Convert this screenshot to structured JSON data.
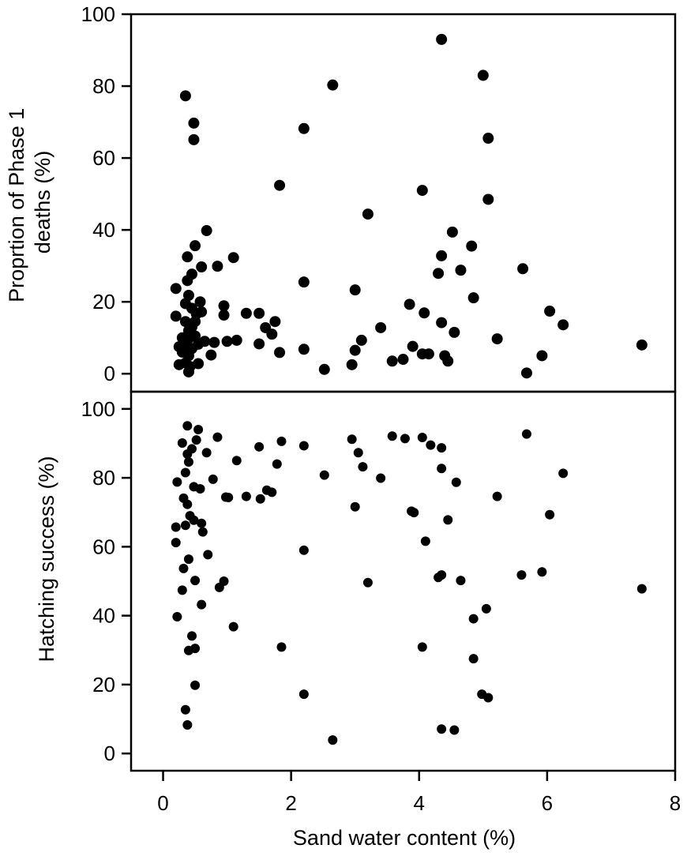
{
  "chart_data": [
    {
      "type": "scatter",
      "title": "",
      "xlabel": "Sand water content (%)",
      "ylabel": [
        "Proprtion of Phase 1",
        "deaths (%)"
      ],
      "xlim": [
        -0.5,
        8
      ],
      "ylim": [
        -5,
        100
      ],
      "xticks": [
        0,
        2,
        4,
        6,
        8
      ],
      "yticks": [
        0,
        20,
        40,
        60,
        80,
        100
      ],
      "grid": false,
      "series": [
        {
          "color": "#000000",
          "points": [
            [
              0.2,
              23.7
            ],
            [
              0.2,
              16.0
            ],
            [
              0.25,
              7.5
            ],
            [
              0.25,
              2.5
            ],
            [
              0.3,
              10.0
            ],
            [
              0.3,
              6.0
            ],
            [
              0.35,
              77.3
            ],
            [
              0.35,
              19.5
            ],
            [
              0.35,
              14.5
            ],
            [
              0.35,
              8.0
            ],
            [
              0.35,
              3.0
            ],
            [
              0.38,
              32.5
            ],
            [
              0.38,
              25.9
            ],
            [
              0.4,
              21.8
            ],
            [
              0.4,
              12.0
            ],
            [
              0.4,
              9.8
            ],
            [
              0.4,
              5.0
            ],
            [
              0.4,
              0.5
            ],
            [
              0.42,
              2.0
            ],
            [
              0.45,
              27.7
            ],
            [
              0.45,
              18.2
            ],
            [
              0.45,
              13.0
            ],
            [
              0.45,
              7.0
            ],
            [
              0.48,
              69.7
            ],
            [
              0.48,
              65.1
            ],
            [
              0.5,
              35.6
            ],
            [
              0.5,
              14.5
            ],
            [
              0.5,
              10.5
            ],
            [
              0.52,
              16.6
            ],
            [
              0.55,
              8.2
            ],
            [
              0.55,
              2.8
            ],
            [
              0.58,
              20.0
            ],
            [
              0.6,
              29.7
            ],
            [
              0.6,
              17.2
            ],
            [
              0.65,
              9.0
            ],
            [
              0.68,
              39.8
            ],
            [
              0.75,
              5.2
            ],
            [
              0.8,
              8.7
            ],
            [
              0.85,
              29.9
            ],
            [
              0.95,
              18.9
            ],
            [
              0.95,
              16.3
            ],
            [
              1.0,
              9.0
            ],
            [
              1.1,
              32.3
            ],
            [
              1.15,
              9.3
            ],
            [
              1.3,
              16.8
            ],
            [
              1.5,
              16.8
            ],
            [
              1.5,
              8.3
            ],
            [
              1.6,
              12.8
            ],
            [
              1.7,
              11.0
            ],
            [
              1.75,
              14.5
            ],
            [
              1.82,
              52.4
            ],
            [
              1.82,
              5.9
            ],
            [
              2.2,
              68.2
            ],
            [
              2.2,
              25.5
            ],
            [
              2.2,
              6.8
            ],
            [
              2.52,
              1.2
            ],
            [
              2.65,
              80.3
            ],
            [
              2.95,
              2.5
            ],
            [
              3.0,
              23.3
            ],
            [
              3.0,
              6.5
            ],
            [
              3.1,
              9.3
            ],
            [
              3.2,
              44.4
            ],
            [
              3.4,
              12.8
            ],
            [
              3.58,
              3.5
            ],
            [
              3.75,
              4.0
            ],
            [
              3.85,
              19.3
            ],
            [
              3.9,
              7.6
            ],
            [
              4.05,
              51.0
            ],
            [
              4.05,
              5.5
            ],
            [
              4.08,
              16.9
            ],
            [
              4.15,
              5.5
            ],
            [
              4.3,
              27.9
            ],
            [
              4.35,
              93.0
            ],
            [
              4.35,
              32.8
            ],
            [
              4.35,
              14.2
            ],
            [
              4.4,
              5.0
            ],
            [
              4.45,
              3.5
            ],
            [
              4.52,
              39.4
            ],
            [
              4.55,
              11.5
            ],
            [
              4.65,
              28.8
            ],
            [
              4.82,
              35.5
            ],
            [
              4.85,
              21.1
            ],
            [
              5.0,
              83.0
            ],
            [
              5.08,
              65.5
            ],
            [
              5.08,
              48.5
            ],
            [
              5.22,
              9.7
            ],
            [
              5.62,
              29.2
            ],
            [
              5.68,
              0.2
            ],
            [
              5.92,
              5.0
            ],
            [
              6.04,
              17.4
            ],
            [
              6.25,
              13.6
            ],
            [
              7.48,
              8.0
            ]
          ]
        }
      ]
    },
    {
      "type": "scatter",
      "title": "",
      "xlabel": "Sand water content (%)",
      "ylabel": [
        "Hatching success (%)"
      ],
      "xlim": [
        -0.5,
        8
      ],
      "ylim": [
        -5,
        105
      ],
      "xticks": [
        0,
        2,
        4,
        6,
        8
      ],
      "yticks": [
        0,
        20,
        40,
        60,
        80,
        100
      ],
      "grid": false,
      "series": [
        {
          "color": "#000000",
          "points": [
            [
              0.2,
              65.7
            ],
            [
              0.2,
              61.2
            ],
            [
              0.22,
              78.8
            ],
            [
              0.22,
              39.7
            ],
            [
              0.3,
              90.1
            ],
            [
              0.3,
              47.4
            ],
            [
              0.32,
              74.1
            ],
            [
              0.32,
              53.7
            ],
            [
              0.35,
              81.5
            ],
            [
              0.35,
              66.2
            ],
            [
              0.35,
              12.7
            ],
            [
              0.38,
              95.1
            ],
            [
              0.38,
              86.9
            ],
            [
              0.38,
              72.3
            ],
            [
              0.38,
              8.3
            ],
            [
              0.4,
              84.6
            ],
            [
              0.4,
              56.4
            ],
            [
              0.4,
              29.9
            ],
            [
              0.42,
              69.0
            ],
            [
              0.45,
              88.4
            ],
            [
              0.45,
              34.1
            ],
            [
              0.48,
              77.4
            ],
            [
              0.48,
              67.7
            ],
            [
              0.5,
              50.2
            ],
            [
              0.5,
              30.5
            ],
            [
              0.5,
              19.8
            ],
            [
              0.52,
              91.0
            ],
            [
              0.55,
              94.0
            ],
            [
              0.58,
              76.8
            ],
            [
              0.6,
              66.8
            ],
            [
              0.6,
              43.2
            ],
            [
              0.62,
              64.3
            ],
            [
              0.68,
              87.3
            ],
            [
              0.7,
              57.7
            ],
            [
              0.78,
              79.6
            ],
            [
              0.85,
              91.8
            ],
            [
              0.88,
              48.2
            ],
            [
              0.95,
              50.0
            ],
            [
              0.98,
              74.4
            ],
            [
              1.02,
              74.3
            ],
            [
              1.1,
              36.8
            ],
            [
              1.15,
              85.0
            ],
            [
              1.3,
              74.6
            ],
            [
              1.5,
              89.0
            ],
            [
              1.52,
              73.9
            ],
            [
              1.62,
              76.4
            ],
            [
              1.7,
              75.8
            ],
            [
              1.78,
              84.0
            ],
            [
              1.85,
              90.6
            ],
            [
              1.85,
              30.9
            ],
            [
              2.2,
              89.3
            ],
            [
              2.2,
              59.0
            ],
            [
              2.2,
              17.2
            ],
            [
              2.52,
              80.8
            ],
            [
              2.65,
              3.9
            ],
            [
              2.95,
              91.2
            ],
            [
              3.0,
              71.6
            ],
            [
              3.05,
              87.3
            ],
            [
              3.12,
              83.2
            ],
            [
              3.2,
              49.6
            ],
            [
              3.4,
              79.9
            ],
            [
              3.58,
              92.1
            ],
            [
              3.78,
              91.4
            ],
            [
              3.88,
              70.3
            ],
            [
              3.92,
              69.9
            ],
            [
              4.05,
              91.7
            ],
            [
              4.05,
              30.9
            ],
            [
              4.1,
              61.6
            ],
            [
              4.18,
              89.5
            ],
            [
              4.3,
              51.1
            ],
            [
              4.35,
              88.7
            ],
            [
              4.35,
              82.7
            ],
            [
              4.35,
              51.8
            ],
            [
              4.35,
              7.1
            ],
            [
              4.45,
              67.8
            ],
            [
              4.55,
              6.8
            ],
            [
              4.58,
              78.7
            ],
            [
              4.65,
              50.2
            ],
            [
              4.85,
              39.1
            ],
            [
              4.85,
              27.5
            ],
            [
              4.98,
              17.2
            ],
            [
              5.05,
              42.0
            ],
            [
              5.08,
              16.2
            ],
            [
              5.22,
              74.6
            ],
            [
              5.6,
              51.8
            ],
            [
              5.68,
              92.7
            ],
            [
              5.92,
              52.7
            ],
            [
              6.04,
              69.3
            ],
            [
              6.25,
              81.3
            ],
            [
              7.48,
              47.8
            ]
          ]
        }
      ]
    }
  ]
}
